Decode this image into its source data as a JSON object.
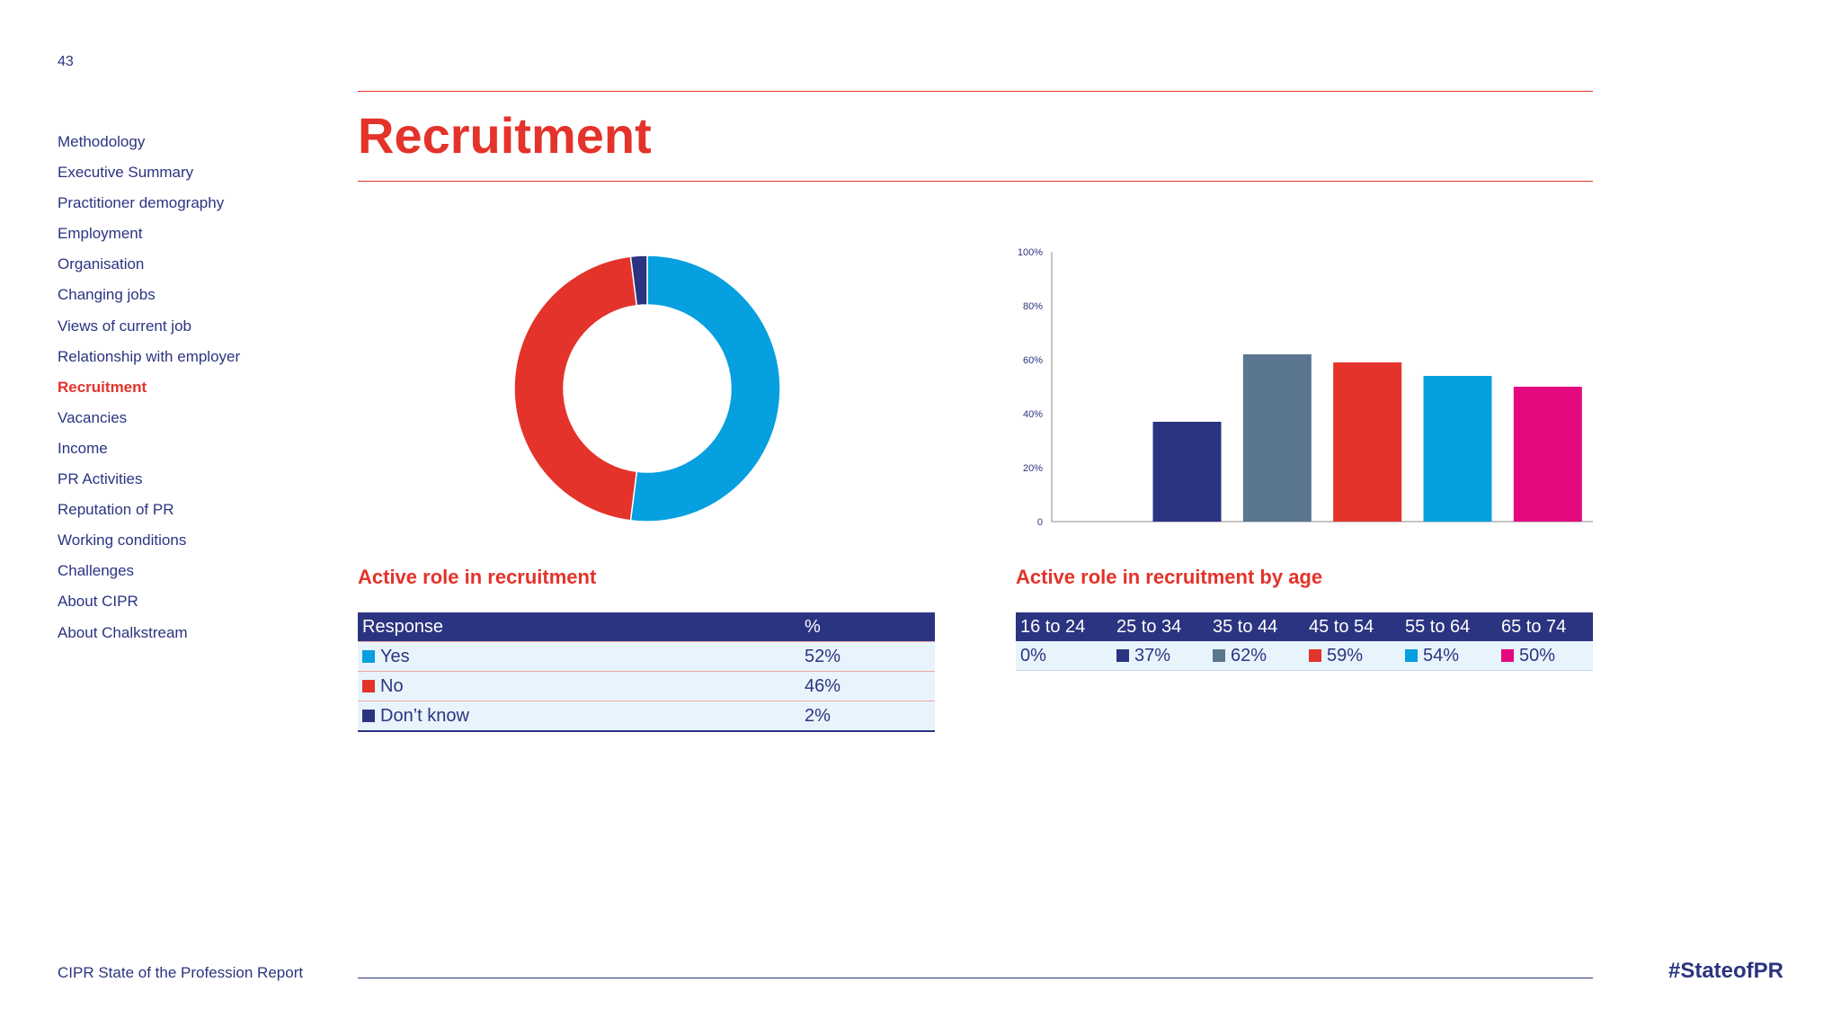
{
  "page_number": "43",
  "sidebar": {
    "items": [
      {
        "label": "Methodology",
        "active": false
      },
      {
        "label": "Executive Summary",
        "active": false
      },
      {
        "label": "Practitioner demography",
        "active": false
      },
      {
        "label": "Employment",
        "active": false
      },
      {
        "label": "Organisation",
        "active": false
      },
      {
        "label": "Changing jobs",
        "active": false
      },
      {
        "label": "Views of current job",
        "active": false
      },
      {
        "label": "Relationship with employer",
        "active": false
      },
      {
        "label": "Recruitment",
        "active": true
      },
      {
        "label": "Vacancies",
        "active": false
      },
      {
        "label": "Income",
        "active": false
      },
      {
        "label": "PR Activities",
        "active": false
      },
      {
        "label": "Reputation of PR",
        "active": false
      },
      {
        "label": "Working conditions",
        "active": false
      },
      {
        "label": "Challenges",
        "active": false
      },
      {
        "label": "About CIPR",
        "active": false
      },
      {
        "label": "About Chalkstream",
        "active": false
      }
    ]
  },
  "page_title": "Recruitment",
  "colors": {
    "accent_red": "#e3332a",
    "navy": "#2b3480",
    "slate": "#5b7790",
    "cyan": "#069fe0",
    "magenta": "#e4097f"
  },
  "chart_data": [
    {
      "type": "pie",
      "title": "Active role in recruitment",
      "categories": [
        "Yes",
        "No",
        "Don’t know"
      ],
      "values": [
        52,
        46,
        2
      ],
      "colors": [
        "#069fe0",
        "#e3332a",
        "#2b3480"
      ],
      "table": {
        "headers": [
          "Response",
          "%"
        ],
        "rows": [
          {
            "label": "Yes",
            "value": "52%",
            "color": "#069fe0"
          },
          {
            "label": "No",
            "value": "46%",
            "color": "#e3332a"
          },
          {
            "label": "Don’t know",
            "value": "2%",
            "color": "#2b3480"
          }
        ]
      }
    },
    {
      "type": "bar",
      "title": "Active role in recruitment by age",
      "categories": [
        "16 to 24",
        "25 to 34",
        "35 to 44",
        "45 to 54",
        "55 to 64",
        "65 to 74"
      ],
      "values": [
        0,
        37,
        62,
        59,
        54,
        50
      ],
      "colors": [
        "#2b3480",
        "#2b3480",
        "#5b7790",
        "#e3332a",
        "#069fe0",
        "#e4097f"
      ],
      "ylim": [
        0,
        100
      ],
      "yticks": [
        "0",
        "20%",
        "40%",
        "60%",
        "80%",
        "100%"
      ],
      "grid": false,
      "table": {
        "headers": [
          "16 to 24",
          "25 to 34",
          "35 to 44",
          "45 to 54",
          "55 to 64",
          "65 to 74"
        ],
        "values": [
          "0%",
          "37%",
          "62%",
          "59%",
          "54%",
          "50%"
        ]
      }
    }
  ],
  "footer": {
    "report_name": "CIPR State of the Profession Report",
    "hashtag": "#StateofPR"
  }
}
